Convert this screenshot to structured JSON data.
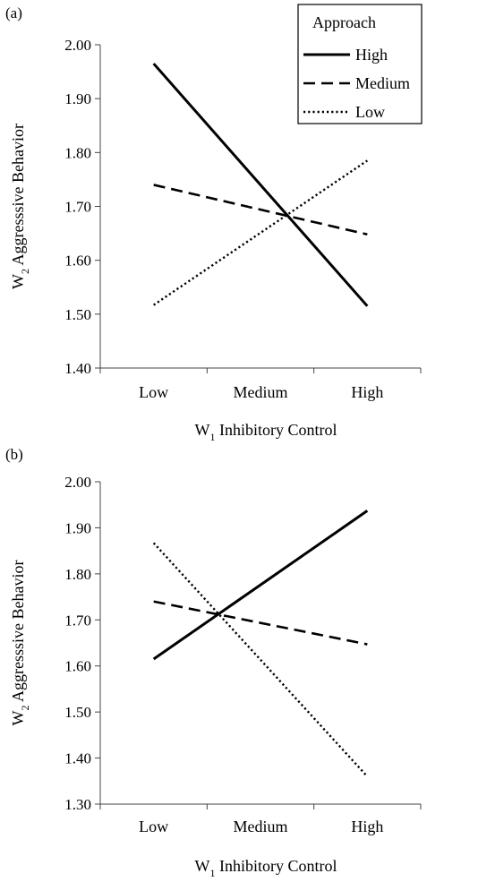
{
  "chart_data": [
    {
      "panel_label": "(a)",
      "type": "line",
      "categories": [
        "Low",
        "Medium",
        "High"
      ],
      "xlabel_main": "W",
      "xlabel_sub": "1",
      "xlabel_rest": " Inhibitory Control",
      "ylabel_main": "W",
      "ylabel_sub": "2",
      "ylabel_rest": " Aggresssive Behavior",
      "ylim": [
        1.4,
        2.0
      ],
      "yticks": [
        "1.40",
        "1.50",
        "1.60",
        "1.70",
        "1.80",
        "1.90",
        "2.00"
      ],
      "legend": {
        "title": "Approach",
        "placement": "top-right"
      },
      "series": [
        {
          "name": "High",
          "style": "solid",
          "values": [
            1.965,
            null,
            1.515
          ]
        },
        {
          "name": "Medium",
          "style": "dashed",
          "values": [
            1.74,
            null,
            1.648
          ]
        },
        {
          "name": "Low",
          "style": "dotted",
          "values": [
            1.517,
            null,
            1.785
          ]
        }
      ]
    },
    {
      "panel_label": "(b)",
      "type": "line",
      "categories": [
        "Low",
        "Medium",
        "High"
      ],
      "xlabel_main": "W",
      "xlabel_sub": "1",
      "xlabel_rest": " Inhibitory Control",
      "ylabel_main": "W",
      "ylabel_sub": "2",
      "ylabel_rest": " Aggresssive Behavior",
      "ylim": [
        1.3,
        2.0
      ],
      "yticks": [
        "1.30",
        "1.40",
        "1.50",
        "1.60",
        "1.70",
        "1.80",
        "1.90",
        "2.00"
      ],
      "legend": null,
      "series": [
        {
          "style": "solid",
          "values": [
            1.615,
            null,
            1.937
          ]
        },
        {
          "style": "dashed",
          "values": [
            1.74,
            null,
            1.647
          ]
        },
        {
          "style": "dotted",
          "values": [
            1.867,
            null,
            1.36
          ]
        }
      ]
    }
  ]
}
